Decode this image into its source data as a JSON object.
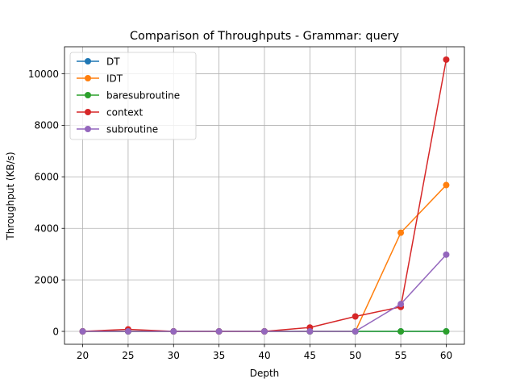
{
  "chart_data": {
    "type": "line",
    "title": "Comparison of Throughputs - Grammar: query",
    "xlabel": "Depth",
    "ylabel": "Throughput (KB/s)",
    "x": [
      20,
      25,
      30,
      35,
      40,
      45,
      50,
      55,
      60
    ],
    "xlim": [
      18,
      62
    ],
    "ylim": [
      -500,
      11050
    ],
    "xticks": [
      "20",
      "25",
      "30",
      "35",
      "40",
      "45",
      "50",
      "55",
      "60"
    ],
    "yticks": [
      "0",
      "2000",
      "4000",
      "6000",
      "8000",
      "10000"
    ],
    "grid": true,
    "legend_position": "top-left",
    "series": [
      {
        "name": "DT",
        "color": "#1f77b4",
        "values": [
          0,
          0,
          0,
          0,
          0,
          0,
          0,
          0,
          0
        ]
      },
      {
        "name": "IDT",
        "color": "#ff7f0e",
        "values": [
          0,
          0,
          0,
          0,
          0,
          0,
          0,
          3830,
          5680
        ]
      },
      {
        "name": "baresubroutine",
        "color": "#2ca02c",
        "values": [
          0,
          0,
          0,
          0,
          0,
          0,
          0,
          0,
          0
        ]
      },
      {
        "name": "context",
        "color": "#d62728",
        "values": [
          0,
          80,
          0,
          0,
          0,
          150,
          580,
          950,
          10550
        ]
      },
      {
        "name": "subroutine",
        "color": "#9467bd",
        "values": [
          0,
          0,
          0,
          0,
          0,
          0,
          0,
          1060,
          2980
        ]
      }
    ]
  }
}
